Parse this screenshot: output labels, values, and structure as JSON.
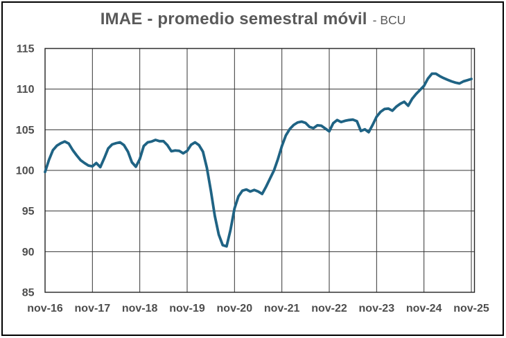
{
  "figure": {
    "title": "IMAE - promedio semestral móvil",
    "title_suffix": "- BCU"
  },
  "style": {
    "line_color": "#1f6384",
    "grid_color": "#333333",
    "border_color": "#222222",
    "label_color": "#4d4d4d",
    "title_color": "#595959",
    "background": "#ffffff"
  },
  "chart_data": {
    "type": "line",
    "title": "IMAE - promedio semestral móvil - BCU",
    "xlabel": "",
    "ylabel": "",
    "ylim": [
      85,
      115
    ],
    "y_tick_step": 5,
    "grid": "both",
    "legend": "none",
    "x_frequency": "monthly",
    "x_start": "nov-16",
    "x_end": "nov-25",
    "x_tick_labels": [
      "nov-16",
      "nov-17",
      "nov-18",
      "nov-19",
      "nov-20",
      "nov-21",
      "nov-22",
      "nov-23",
      "nov-24",
      "nov-25"
    ],
    "y_tick_labels": [
      115,
      110,
      105,
      100,
      95,
      90,
      85
    ],
    "series": [
      {
        "name": "IMAE promedio semestral móvil",
        "values": [
          99.8,
          101.3,
          102.5,
          103.05,
          103.35,
          103.55,
          103.3,
          102.5,
          101.85,
          101.25,
          100.9,
          100.6,
          100.5,
          100.9,
          100.4,
          101.5,
          102.7,
          103.2,
          103.35,
          103.45,
          103.1,
          102.3,
          101.0,
          100.45,
          101.4,
          103.0,
          103.45,
          103.55,
          103.75,
          103.6,
          103.6,
          103.1,
          102.35,
          102.45,
          102.4,
          102.1,
          102.4,
          103.15,
          103.45,
          103.1,
          102.3,
          100.3,
          97.5,
          94.4,
          92.1,
          90.8,
          90.65,
          92.7,
          95.3,
          96.8,
          97.5,
          97.65,
          97.4,
          97.6,
          97.4,
          97.1,
          98.0,
          99.0,
          100.0,
          101.4,
          103.0,
          104.3,
          105.1,
          105.6,
          105.9,
          106.0,
          105.85,
          105.35,
          105.2,
          105.55,
          105.5,
          105.15,
          104.8,
          105.8,
          106.2,
          105.95,
          106.1,
          106.2,
          106.25,
          106.05,
          104.85,
          105.05,
          104.7,
          105.6,
          106.6,
          107.2,
          107.55,
          107.6,
          107.35,
          107.85,
          108.2,
          108.45,
          107.95,
          108.8,
          109.4,
          109.9,
          110.4,
          111.3,
          111.9,
          111.9,
          111.6,
          111.35,
          111.15,
          110.95,
          110.8,
          110.7,
          110.95,
          111.1,
          111.25
        ]
      }
    ]
  }
}
